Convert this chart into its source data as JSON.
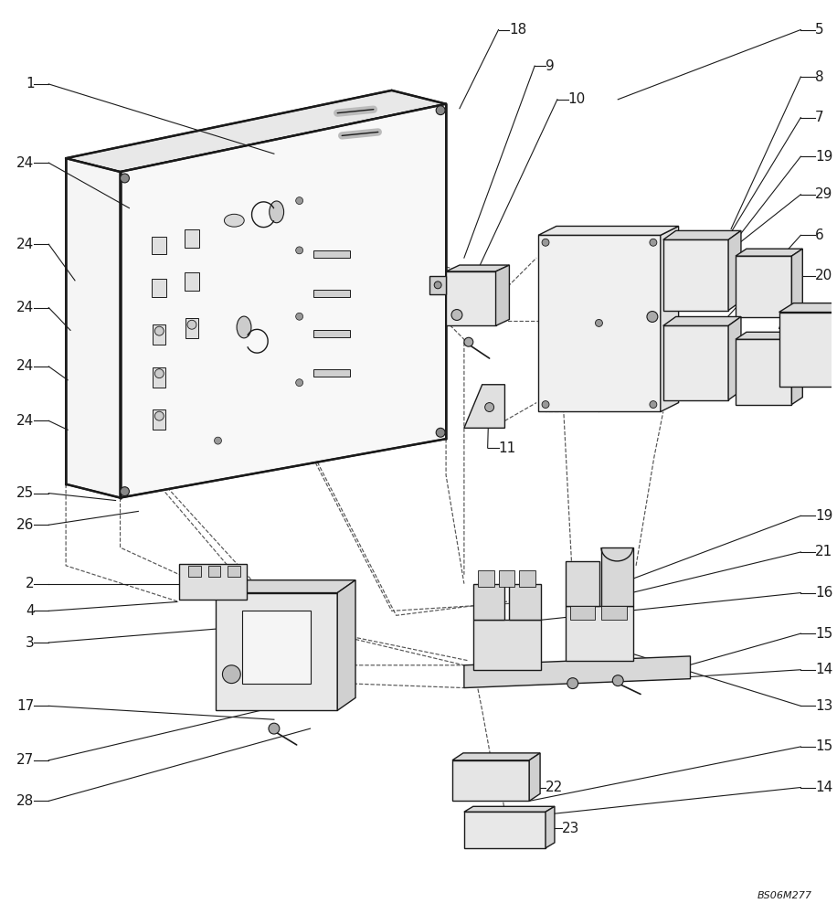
{
  "bg_color": "#ffffff",
  "line_color": "#1a1a1a",
  "fig_width": 9.16,
  "fig_height": 10.0,
  "watermark": "BS06M277",
  "dpi": 100
}
